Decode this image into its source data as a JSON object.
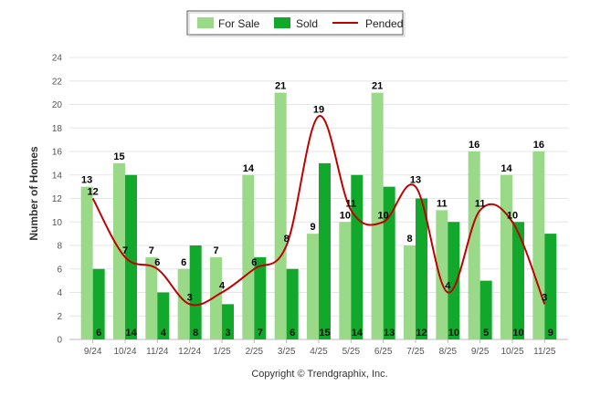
{
  "chart_data": {
    "type": "bar",
    "title": "",
    "xlabel": "",
    "ylabel": "Number of Homes",
    "ylim": [
      0,
      24
    ],
    "ytick_step": 2,
    "grid": true,
    "legend_position": "top-center",
    "categories": [
      "9/24",
      "10/24",
      "11/24",
      "12/24",
      "1/25",
      "2/25",
      "3/25",
      "4/25",
      "5/25",
      "6/25",
      "7/25",
      "8/25",
      "9/25",
      "10/25",
      "11/25"
    ],
    "series": [
      {
        "name": "For Sale",
        "kind": "bar",
        "color": "#99d988",
        "values": [
          13,
          15,
          7,
          6,
          7,
          14,
          21,
          9,
          10,
          21,
          8,
          11,
          16,
          14,
          16
        ]
      },
      {
        "name": "Sold",
        "kind": "bar",
        "color": "#11a82b",
        "values": [
          6,
          14,
          4,
          8,
          3,
          7,
          6,
          15,
          14,
          13,
          12,
          10,
          5,
          10,
          9
        ]
      },
      {
        "name": "Pended",
        "kind": "line",
        "color": "#c00000",
        "values": [
          12,
          7,
          6,
          3,
          4,
          6,
          8,
          19,
          11,
          10,
          13,
          4,
          11,
          10,
          3
        ]
      }
    ]
  },
  "legend": {
    "for_sale": "For Sale",
    "sold": "Sold",
    "pended": "Pended"
  },
  "footer": {
    "copyright": "Copyright © Trendgraphix, Inc."
  }
}
